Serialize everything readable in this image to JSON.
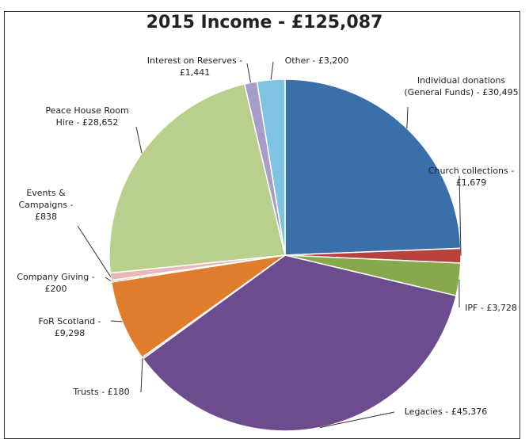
{
  "chart_data": {
    "type": "pie",
    "title": "2015 Income - £125,087",
    "categories": [
      "Individual donations (General Funds) -",
      "Church collections -",
      "IPF -",
      "Legacies -",
      "Trusts -",
      "FoR Scotland -",
      "Company Giving -",
      "Events & Campaigns -",
      "Peace House Room Hire -",
      "Interest on Reserves -",
      "Other -"
    ],
    "values": [
      30495,
      1679,
      3728,
      45376,
      180,
      9298,
      200,
      838,
      28652,
      1441,
      3200
    ],
    "value_labels": [
      "£30,495",
      "£1,679",
      "£3,728",
      "£45,376",
      "£180",
      "£9,298",
      "£200",
      "£838",
      "£28,652",
      "£1,441",
      "£3,200"
    ],
    "colors": [
      "#3b6fa9",
      "#b8413c",
      "#85a94b",
      "#6c4b8e",
      "#3f9fb7",
      "#e07d2c",
      "#d9a3a2",
      "#e6b9b8",
      "#b9d08c",
      "#a89dc9",
      "#7fc3e2"
    ]
  }
}
